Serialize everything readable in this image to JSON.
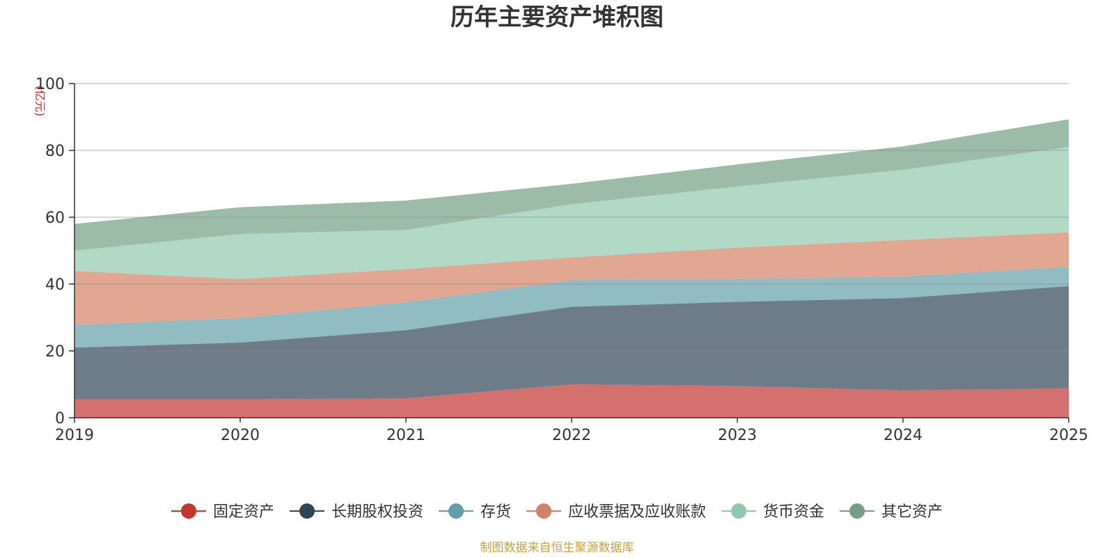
{
  "chart_data": {
    "type": "area",
    "stacked": true,
    "title": "历年主要资产堆积图",
    "unit": "(亿元)",
    "x": [
      "2019",
      "2020",
      "2021",
      "2022",
      "2023",
      "2024",
      "2025"
    ],
    "ylim": [
      0,
      100
    ],
    "yticks": [
      "0",
      "20",
      "40",
      "60",
      "80",
      "100"
    ],
    "series": [
      {
        "name": "固定资产",
        "color": "#c23531",
        "values": [
          5.5,
          5.5,
          5.8,
          10.0,
          9.5,
          8.2,
          8.8
        ]
      },
      {
        "name": "长期股权投资",
        "color": "#2f4554",
        "values": [
          15.5,
          17.0,
          20.4,
          23.2,
          25.2,
          27.6,
          30.6
        ]
      },
      {
        "name": "存货",
        "color": "#61a0a8",
        "values": [
          6.8,
          7.4,
          8.4,
          8.0,
          6.8,
          6.5,
          5.8
        ]
      },
      {
        "name": "应收票据及应收账款",
        "color": "#d48265",
        "values": [
          16.1,
          11.6,
          9.9,
          6.8,
          9.4,
          10.9,
          10.3
        ]
      },
      {
        "name": "货币资金",
        "color": "#91c7ae",
        "values": [
          6.1,
          13.5,
          11.7,
          15.9,
          18.3,
          21.0,
          25.5
        ]
      },
      {
        "name": "其它资产",
        "color": "#749f83",
        "values": [
          8.0,
          8.0,
          8.8,
          6.1,
          6.6,
          7.0,
          8.3
        ]
      }
    ],
    "grid": true,
    "legend_position": "bottom"
  },
  "footer": {
    "source": "制图数据来自恒生聚源数据库"
  }
}
